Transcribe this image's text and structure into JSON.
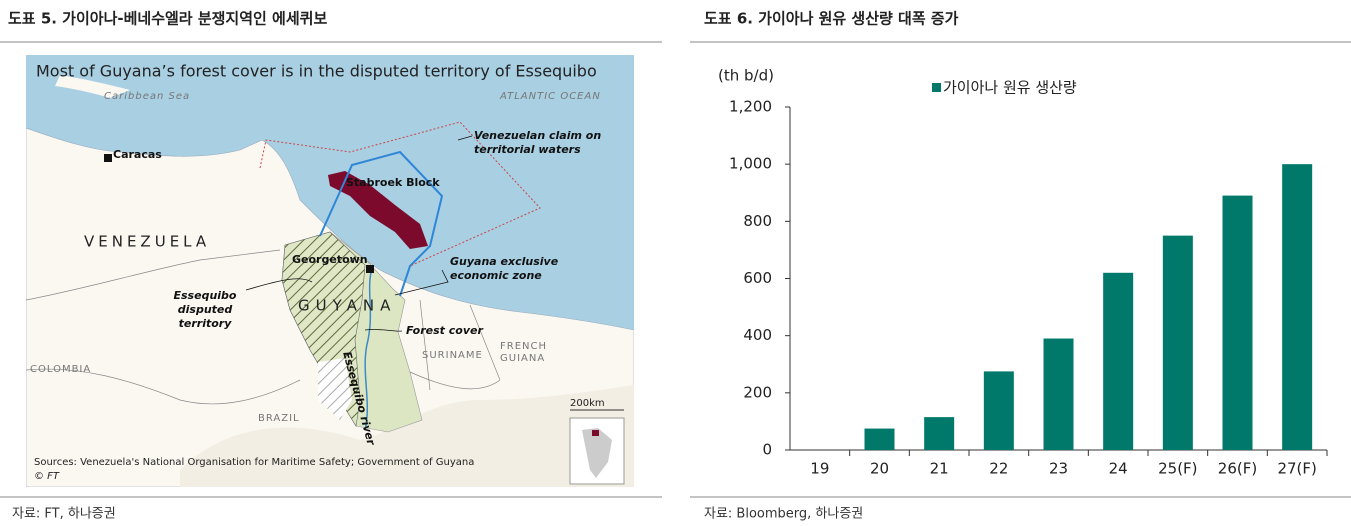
{
  "left": {
    "title": "도표 5. 가이아나-베네수엘라 분쟁지역인 에세퀴보",
    "source": "자료: FT, 하나증권",
    "map": {
      "title": "Most of Guyana’s forest cover is in the disputed territory of Essequibo",
      "caribbean_sea": "Caribbean Sea",
      "atlantic_ocean": "ATLANTIC OCEAN",
      "caracas": "Caracas",
      "venezuelan_claim": [
        "Venezuelan claim on",
        "territorial waters"
      ],
      "stabroek_block": "Stabroek Block",
      "venezuela": "VENEZUELA",
      "georgetown": "Georgetown",
      "guyana_eez": [
        "Guyana exclusive",
        "economic zone"
      ],
      "essequibo": [
        "Essequibo",
        "disputed",
        "territory"
      ],
      "guyana": "GUYANA",
      "forest_cover": "Forest cover",
      "suriname": "SURINAME",
      "french_guiana": [
        "FRENCH",
        "GUIANA"
      ],
      "colombia": "COLOMBIA",
      "brazil": "BRAZIL",
      "essequibo_river": "Essequibo river",
      "scale": "200km",
      "sources": "Sources: Venezuela's National Organisation for Maritime Safety; Government of Guyana",
      "credit": "© FT"
    }
  },
  "right": {
    "title": "도표 6. 가이아나 원유 생산량 대폭 증가",
    "source": "자료: Bloomberg, 하나증권"
  },
  "chart_data": {
    "type": "bar",
    "y_label": "(th b/d)",
    "categories": [
      "19",
      "20",
      "21",
      "22",
      "23",
      "24",
      "25(F)",
      "26(F)",
      "27(F)"
    ],
    "series": [
      {
        "name": "가이아나 원유 생산량",
        "color": "#00796b",
        "values": [
          0,
          75,
          115,
          275,
          390,
          620,
          750,
          890,
          1000
        ]
      }
    ],
    "ylim": [
      0,
      1200
    ],
    "yticks": [
      0,
      200,
      400,
      600,
      800,
      {
        "value": 1000,
        "label": "1,000"
      },
      {
        "value": 1200,
        "label": "1,200"
      }
    ]
  }
}
